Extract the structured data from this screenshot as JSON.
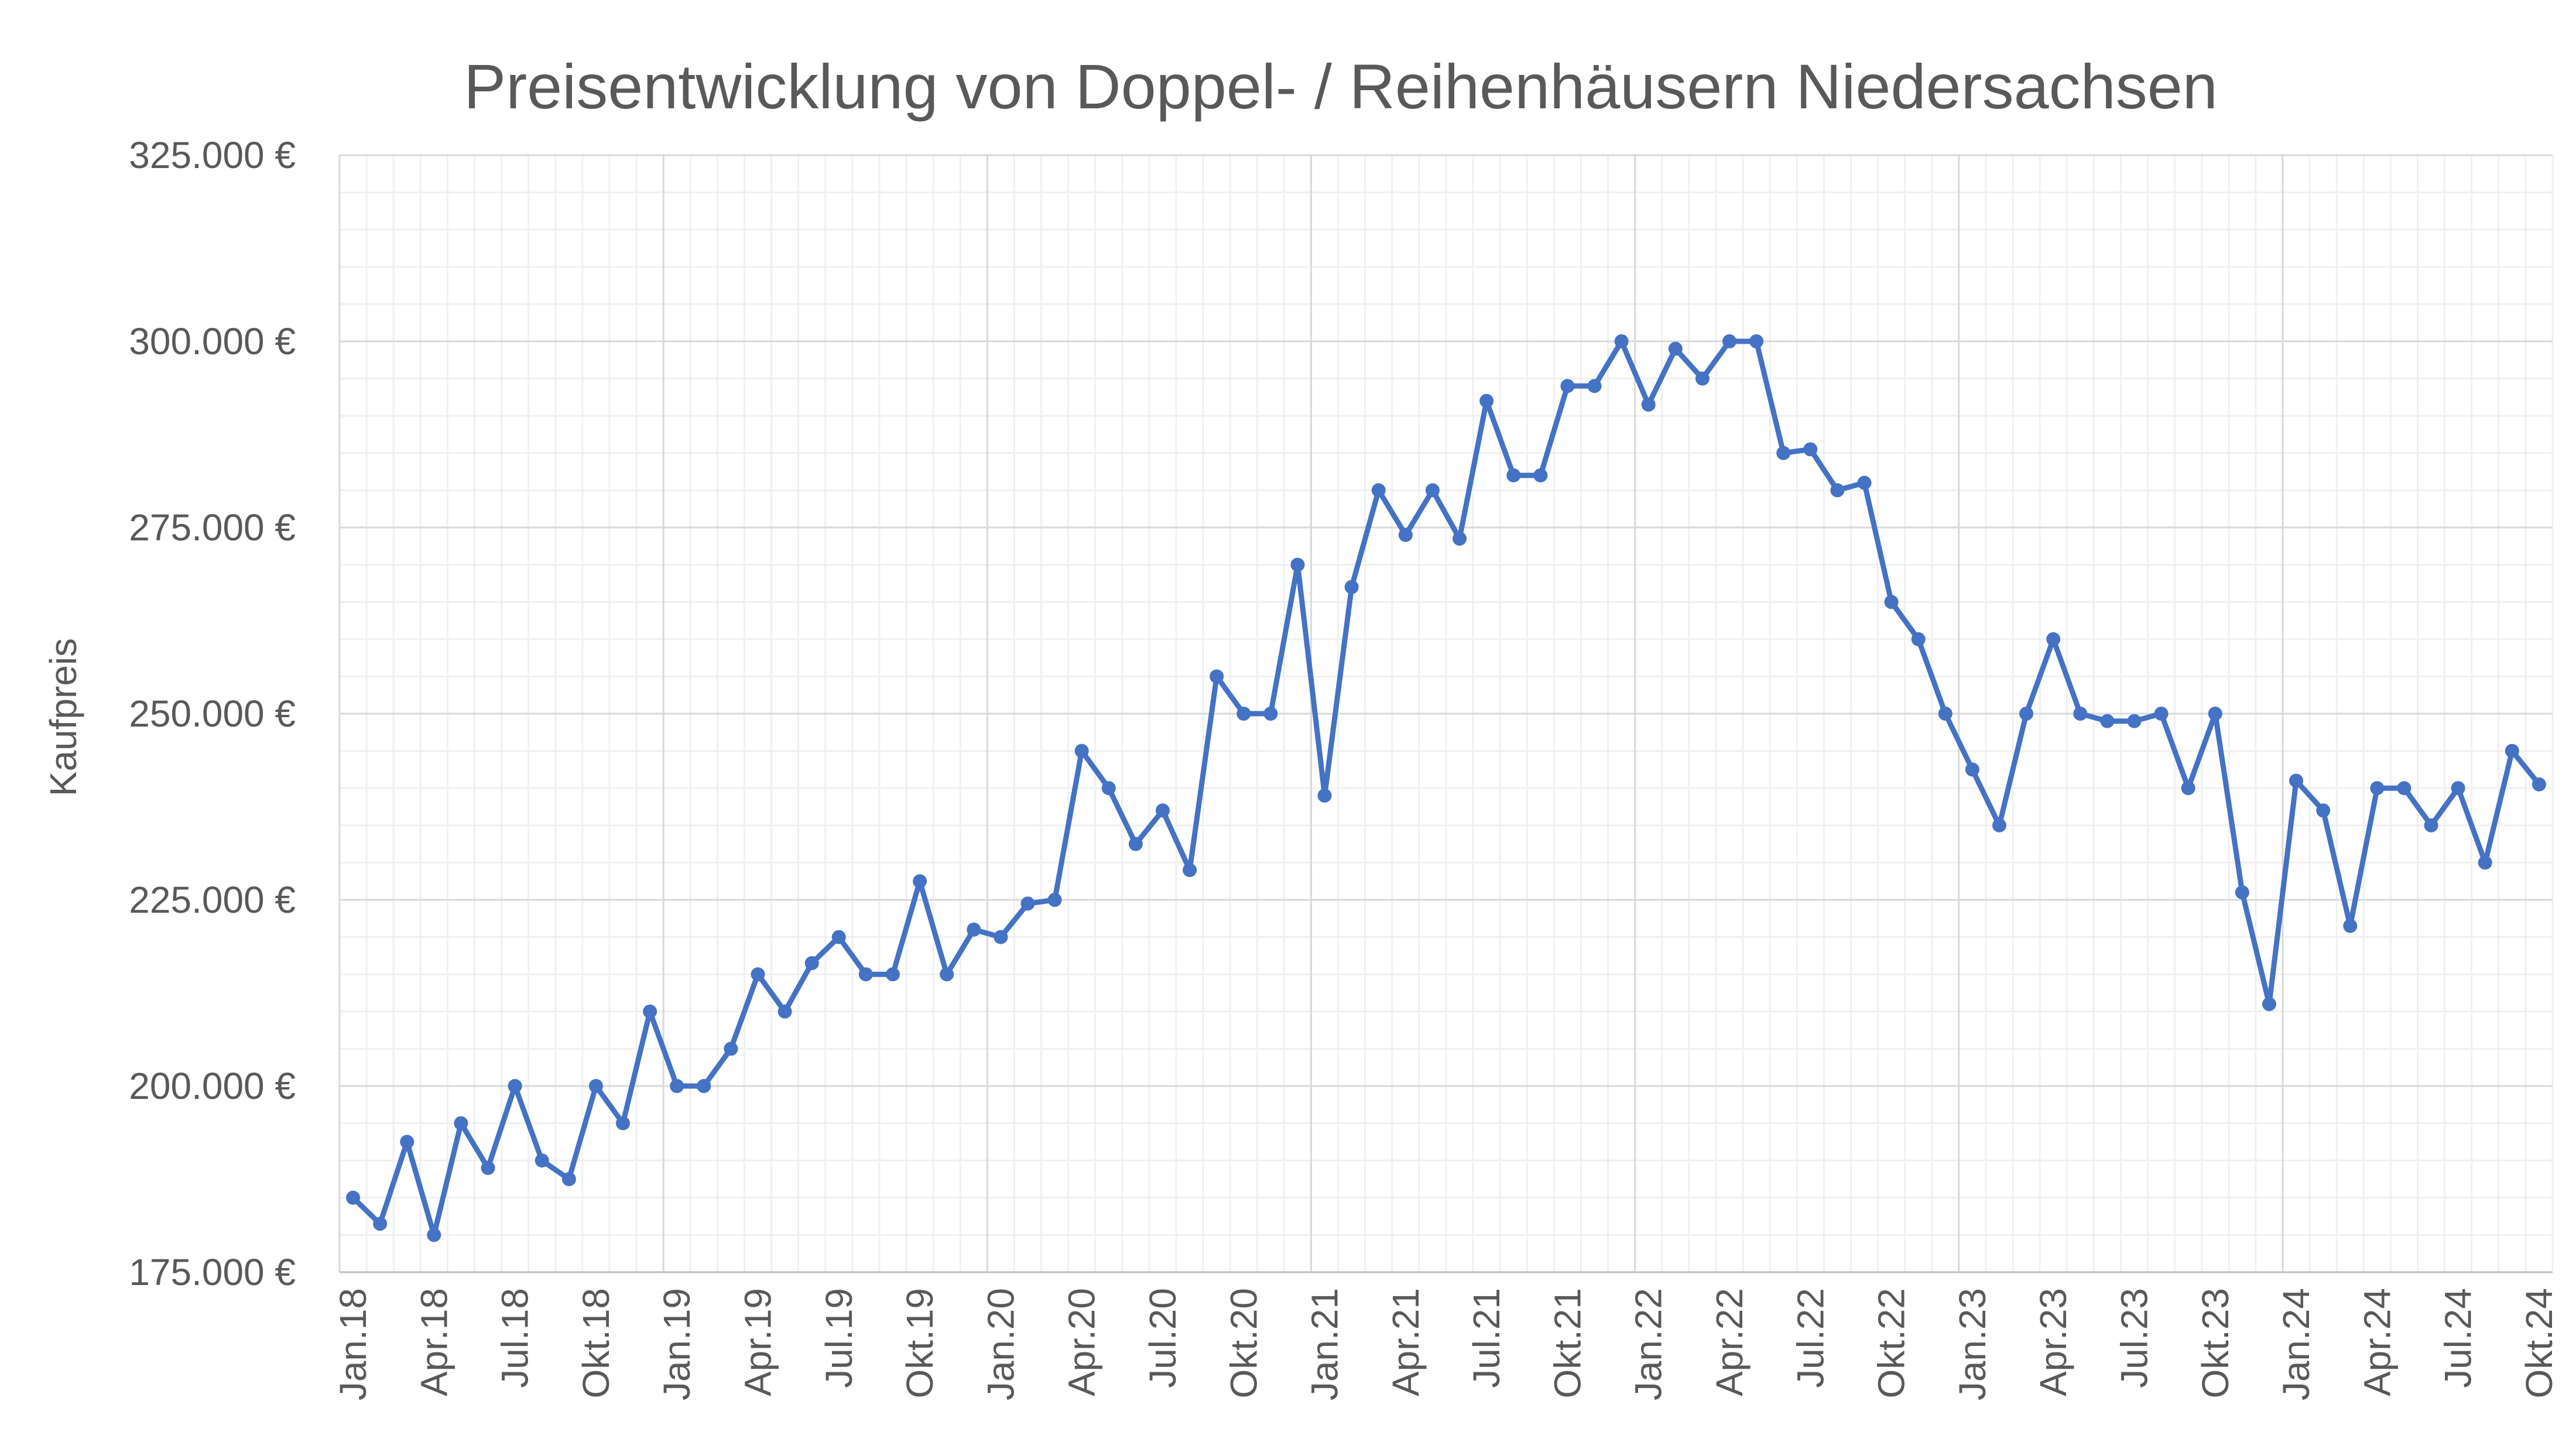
{
  "chart_data": {
    "type": "line",
    "title": "Preisentwicklung von Doppel- / Reihenhäusern Niedersachsen",
    "xlabel": "",
    "ylabel": "Kaufpreis",
    "ylim": [
      175000,
      325000
    ],
    "y_major_step": 25000,
    "y_minor_step": 5000,
    "y_tick_labels": [
      "325.000 €",
      "300.000 €",
      "275.000 €",
      "250.000 €",
      "225.000 €",
      "200.000 €",
      "175.000 €"
    ],
    "x_tick_labels": [
      "Jan.18",
      "Apr.18",
      "Jul.18",
      "Okt.18",
      "Jan.19",
      "Apr.19",
      "Jul.19",
      "Okt.19",
      "Jan.20",
      "Apr.20",
      "Jul.20",
      "Okt.20",
      "Jan.21",
      "Apr.21",
      "Jul.21",
      "Okt.21",
      "Jan.22",
      "Apr.22",
      "Jul.22",
      "Okt.22",
      "Jan.23",
      "Apr.23",
      "Jul.23",
      "Okt.23",
      "Jan.24",
      "Apr.24",
      "Jul.24",
      "Okt.24"
    ],
    "grid": true,
    "legend": "none",
    "series": [
      {
        "color": "#4472c4",
        "values": [
          185000,
          181500,
          192500,
          180000,
          195000,
          189000,
          200000,
          190000,
          187500,
          200000,
          195000,
          210000,
          200000,
          200000,
          205000,
          215000,
          210000,
          216500,
          220000,
          215000,
          215000,
          227500,
          215000,
          221000,
          220000,
          224500,
          225000,
          245000,
          240000,
          232500,
          237000,
          229000,
          255000,
          250000,
          250000,
          270000,
          239000,
          267000,
          280000,
          274000,
          280000,
          273500,
          292000,
          282000,
          282000,
          294000,
          294000,
          300000,
          291500,
          299000,
          295000,
          300000,
          300000,
          285000,
          285500,
          280000,
          281000,
          265000,
          260000,
          250000,
          242500,
          235000,
          250000,
          260000,
          250000,
          249000,
          249000,
          250000,
          240000,
          250000,
          226000,
          211000,
          241000,
          237000,
          221500,
          240000,
          240000,
          235000,
          240000,
          230000,
          245000,
          240500
        ]
      }
    ]
  }
}
